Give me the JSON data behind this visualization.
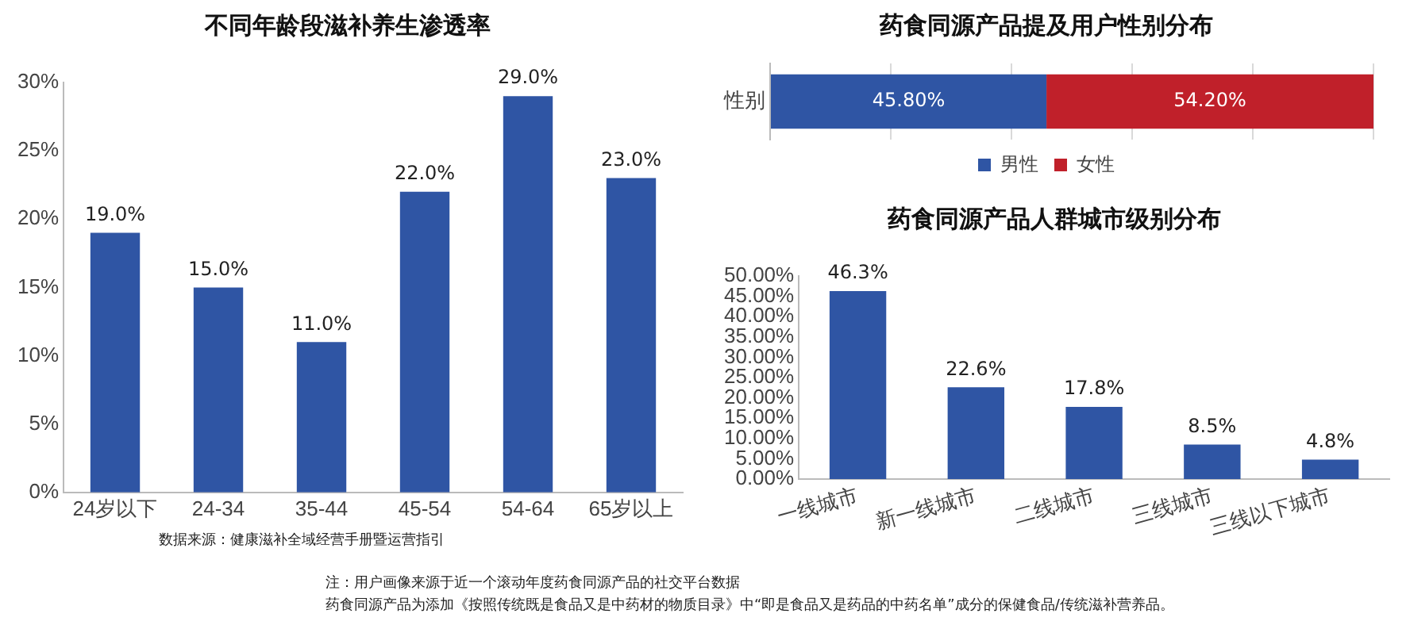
{
  "chart_data": [
    {
      "type": "bar",
      "title": "不同年龄段滋补养生渗透率",
      "categories": [
        "24岁以下",
        "24-34",
        "35-44",
        "45-54",
        "54-64",
        "65岁以上"
      ],
      "values": [
        19,
        15,
        11,
        22,
        29,
        23
      ],
      "value_labels": [
        "19.0%",
        "15.0%",
        "11.0%",
        "22.0%",
        "29.0%",
        "23.0%"
      ],
      "color": "#2f55a4",
      "ylim": [
        0,
        30
      ],
      "yticks": [
        {
          "value": 0,
          "label": "0%"
        },
        {
          "value": 5,
          "label": "5%"
        },
        {
          "value": 10,
          "label": "10%"
        },
        {
          "value": 15,
          "label": "15%"
        },
        {
          "value": 20,
          "label": "20%"
        },
        {
          "value": 25,
          "label": "25%"
        },
        {
          "value": 30,
          "label": "30%"
        }
      ],
      "grid": false,
      "legend": false,
      "annotations": [
        "数据来源：健康滋补全域经营手册暨运营指引"
      ]
    },
    {
      "type": "bar",
      "title": "药食同源产品提及用户性别分布",
      "orientation": "horizontal",
      "stacked": true,
      "categories": [
        "性别"
      ],
      "series": [
        {
          "name": "男性",
          "color": "#2f55a4",
          "values": [
            45.8
          ],
          "value_labels": [
            "45.80%"
          ]
        },
        {
          "name": "女性",
          "color": "#c0202a",
          "values": [
            54.2
          ],
          "value_labels": [
            "54.20%"
          ]
        }
      ],
      "xlim": [
        0,
        100
      ],
      "xticks": [
        {
          "value": 0,
          "label": null
        },
        {
          "value": 20,
          "label": null
        },
        {
          "value": 40,
          "label": null
        },
        {
          "value": 60,
          "label": null
        },
        {
          "value": 80,
          "label": null
        },
        {
          "value": 100,
          "label": null
        }
      ],
      "tick_labels": "y",
      "grid": "x",
      "legend": "bottom"
    },
    {
      "type": "bar",
      "title": "药食同源产品人群城市级别分布",
      "categories": [
        "一线城市",
        "新一线城市",
        "二线城市",
        "三线城市",
        "三线以下城市"
      ],
      "values": [
        46.3,
        22.6,
        17.8,
        8.5,
        4.8
      ],
      "value_labels": [
        "46.3%",
        "22.6%",
        "17.8%",
        "8.5%",
        "4.8%"
      ],
      "color": "#2f55a4",
      "ylim": [
        0,
        50
      ],
      "yticks": [
        {
          "value": 0,
          "label": "0.00%"
        },
        {
          "value": 5,
          "label": "5.00%"
        },
        {
          "value": 10,
          "label": "10.00%"
        },
        {
          "value": 15,
          "label": "15.00%"
        },
        {
          "value": 20,
          "label": "20.00%"
        },
        {
          "value": 25,
          "label": "25.00%"
        },
        {
          "value": 30,
          "label": "30.00%"
        },
        {
          "value": 35,
          "label": "35.00%"
        },
        {
          "value": 40,
          "label": "40.00%"
        },
        {
          "value": 45,
          "label": "45.00%"
        },
        {
          "value": 50,
          "label": "50.00%"
        }
      ],
      "grid": false,
      "legend": false,
      "annotations": [
        "注：用户画像来源于近一个滚动年度药食同源产品的社交平台数据",
        "药食同源产品为添加《按照传统既是食品又是中药材的物质目录》中“即是食品又是药品的中药名单”成分的保健食品/传统滋补营养品。"
      ]
    }
  ]
}
